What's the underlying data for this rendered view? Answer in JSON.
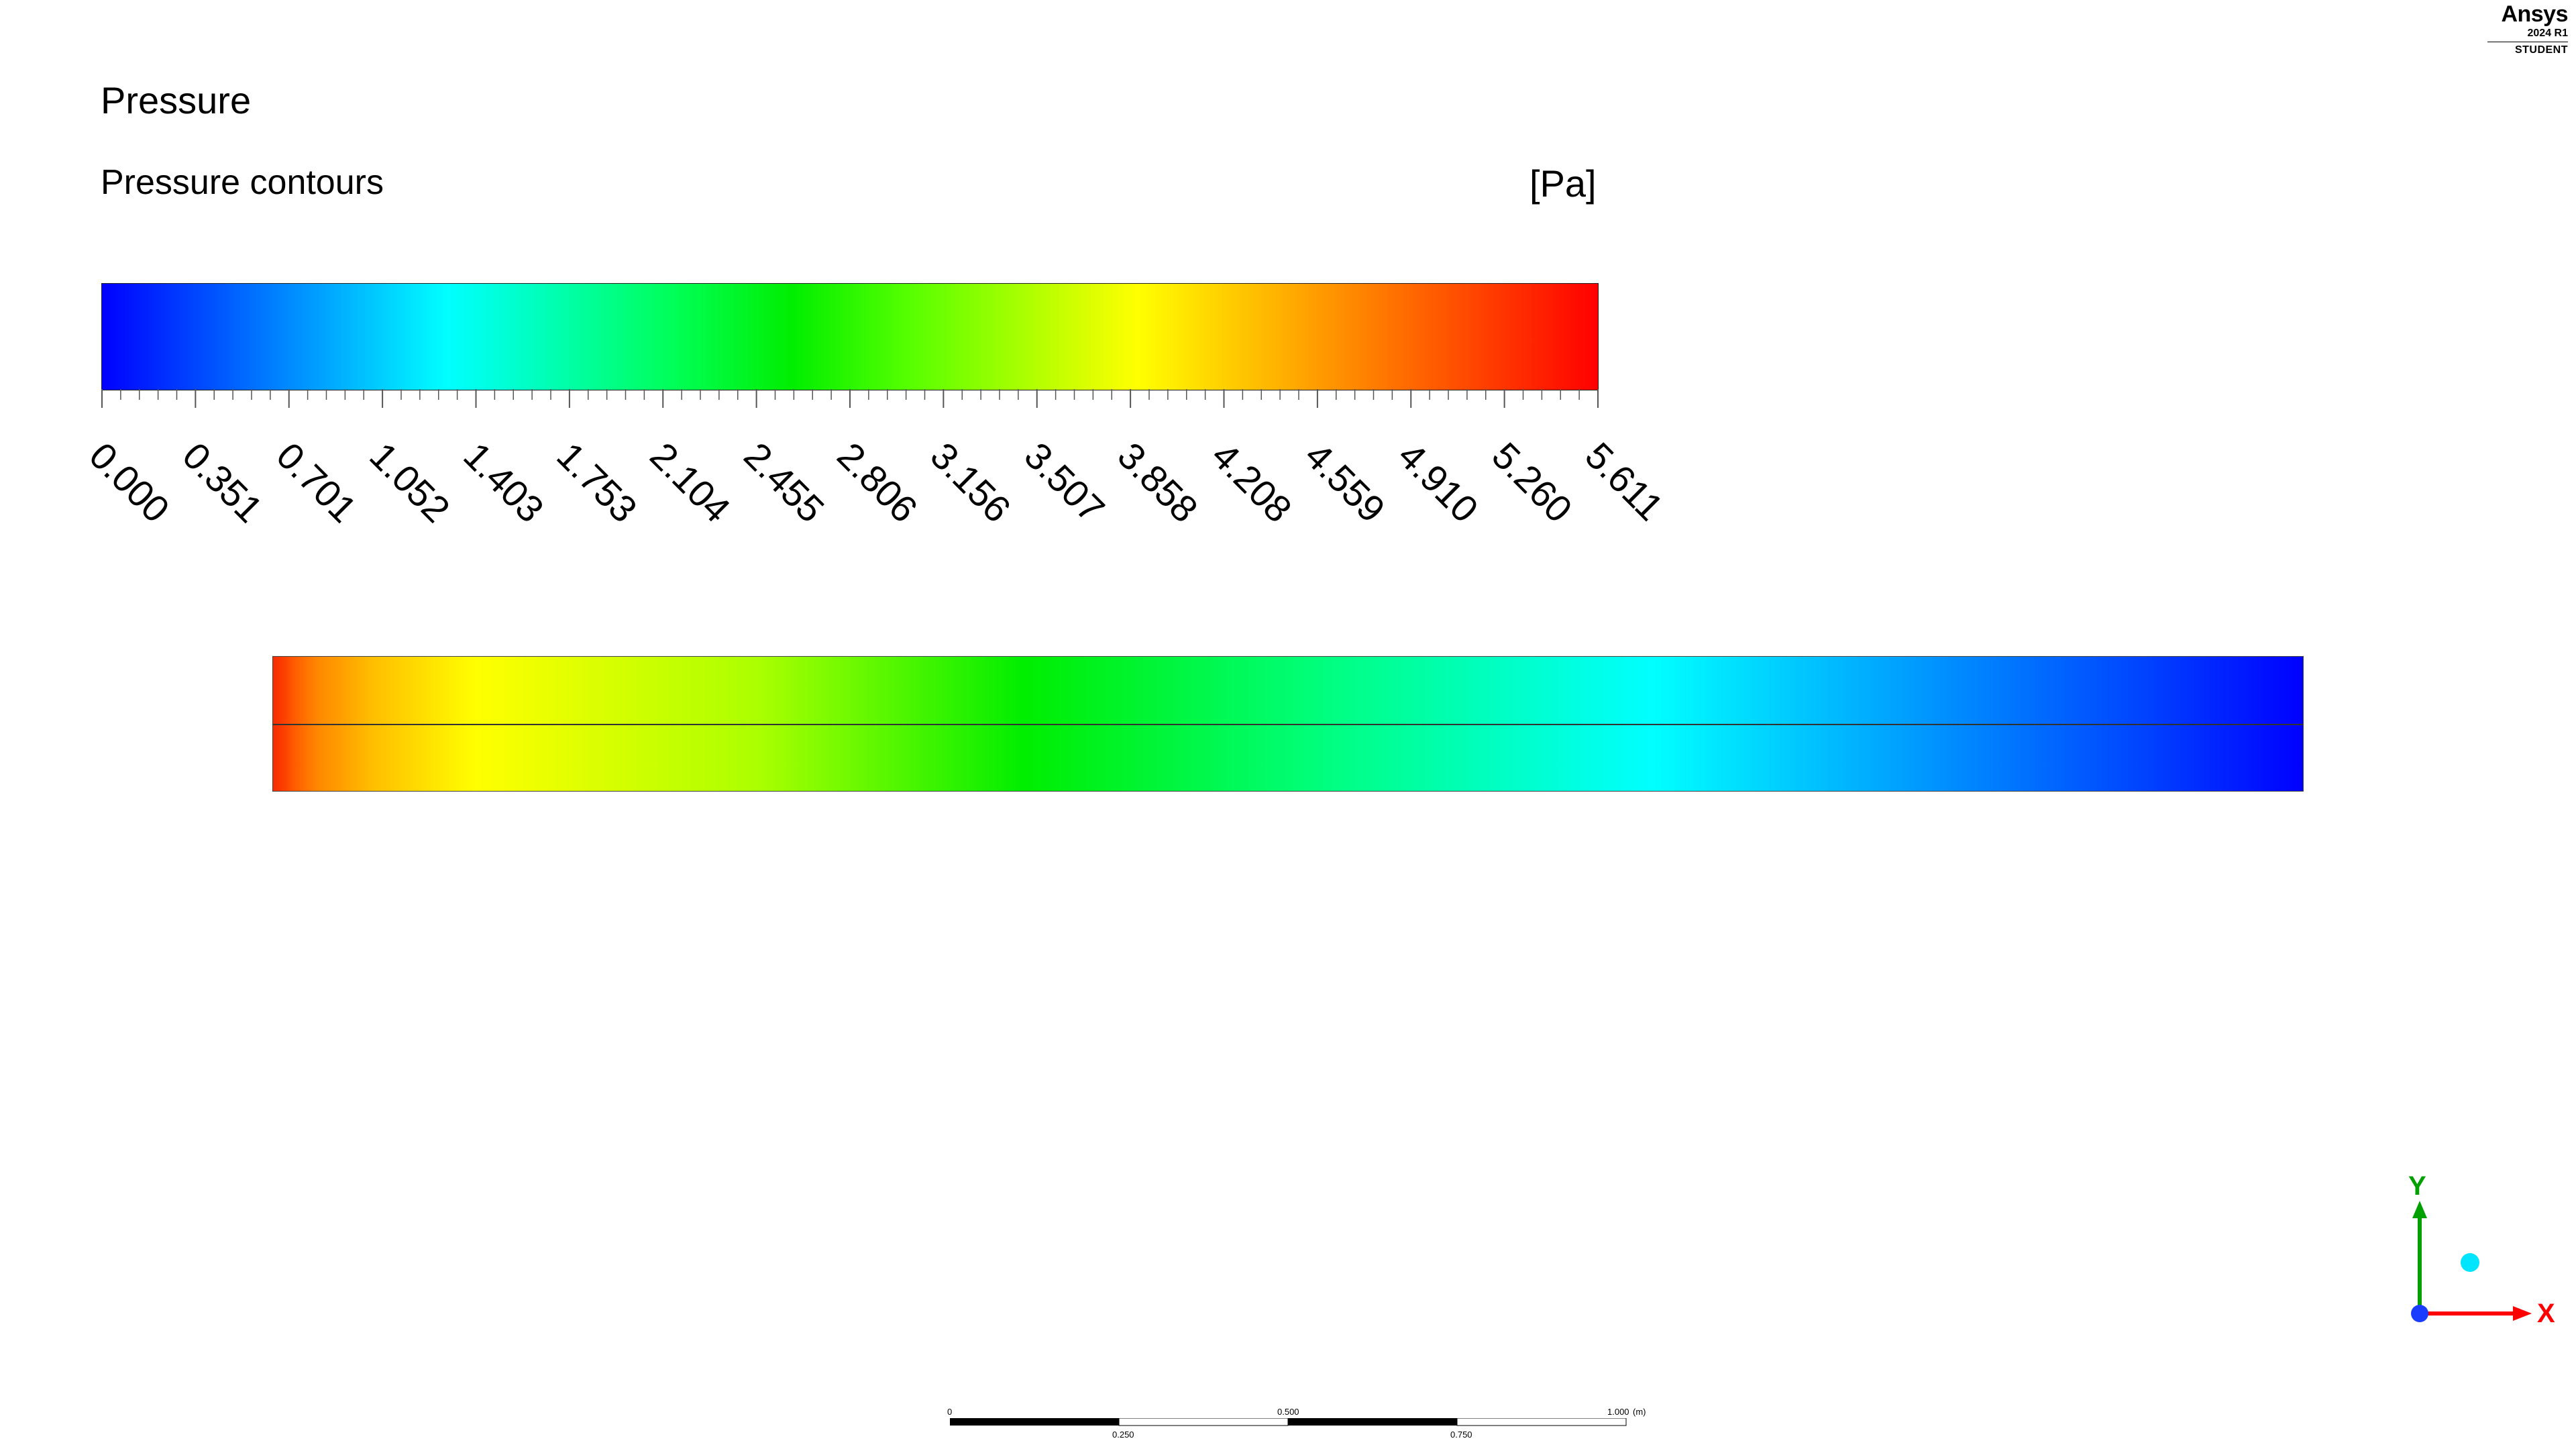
{
  "brand": {
    "logo": "Ansys",
    "version": "2024 R1",
    "edition": "STUDENT"
  },
  "header": {
    "title": "Pressure",
    "subtitle": "Pressure contours",
    "units": "[Pa]"
  },
  "legend": {
    "colors": [
      "#0000ff",
      "#0055ff",
      "#00aaff",
      "#00ffff",
      "#00ffaa",
      "#00ff55",
      "#00ee00",
      "#55ff00",
      "#aaff00",
      "#ffff00",
      "#ffc000",
      "#ff8000",
      "#ff4000",
      "#ff0000"
    ],
    "tick_labels": [
      "0.000",
      "0.351",
      "0.701",
      "1.052",
      "1.403",
      "1.753",
      "2.104",
      "2.455",
      "2.806",
      "3.156",
      "3.507",
      "3.858",
      "4.208",
      "4.559",
      "4.910",
      "5.260",
      "5.611"
    ]
  },
  "domain": {
    "colormap": "pressure high (left, red) to low (right, blue)"
  },
  "triad": {
    "y_label": "Y",
    "x_label": "X",
    "y_color": "#00a000",
    "x_color": "#ff0000",
    "origin_color": "#1a3cff",
    "sphere_color": "#00e5ff"
  },
  "ruler": {
    "labels": [
      "0",
      "0.500",
      "1.000",
      "(m)",
      "0.250",
      "0.750"
    ]
  }
}
